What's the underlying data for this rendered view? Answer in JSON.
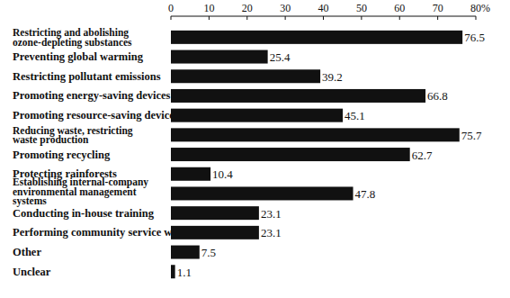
{
  "chart_data": {
    "type": "bar",
    "orientation": "horizontal",
    "categories": [
      "Restricting and abolishing\nozone-depleting substances",
      "Preventing global warming",
      "Restricting pollutant emissions",
      "Promoting energy-saving devices",
      "Promoting resource-saving devices",
      "Reducing waste, restricting\nwaste production",
      "Promoting recycling",
      "Protecting rainforests",
      "Establishing internal-company\nenvironmental management\nsystems",
      "Conducting in-house training",
      "Performing community service work",
      "Other",
      "Unclear"
    ],
    "values": [
      76.5,
      25.4,
      39.2,
      66.8,
      45.1,
      75.7,
      62.7,
      10.4,
      47.8,
      23.1,
      23.1,
      7.5,
      1.1
    ],
    "color": "#111111",
    "xlim": [
      0,
      80
    ],
    "xticks": [
      0,
      10,
      20,
      30,
      40,
      50,
      60,
      70,
      {
        "value": 80,
        "label": "80%"
      }
    ],
    "data_labels": true,
    "grid": false
  }
}
